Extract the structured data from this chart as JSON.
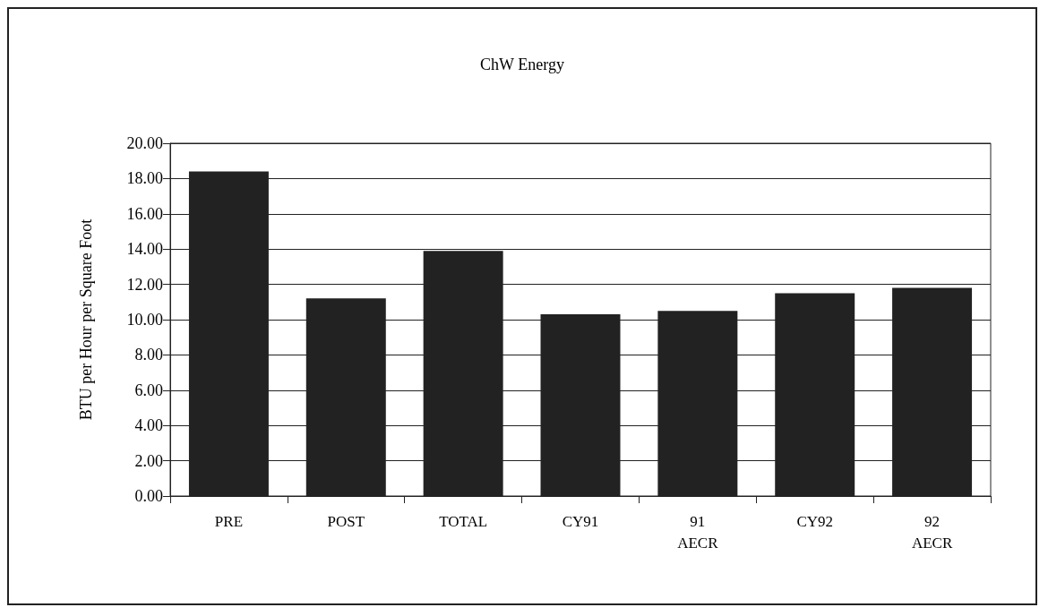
{
  "chart_data": {
    "type": "bar",
    "title": "ChW Energy",
    "ylabel": "BTU per Hour per Square Foot",
    "categories": [
      "PRE",
      "POST",
      "TOTAL",
      "CY91",
      "91\nAECR",
      "CY92",
      "92\nAECR"
    ],
    "values": [
      18.4,
      11.2,
      13.9,
      10.3,
      10.5,
      11.5,
      11.8
    ],
    "color": "#222222",
    "ylim": [
      0,
      20
    ],
    "yticks": [
      {
        "value": 0,
        "label": "0.00"
      },
      {
        "value": 2,
        "label": "2.00"
      },
      {
        "value": 4,
        "label": "4.00"
      },
      {
        "value": 6,
        "label": "6.00"
      },
      {
        "value": 8,
        "label": "8.00"
      },
      {
        "value": 10,
        "label": "10.00"
      },
      {
        "value": 12,
        "label": "12.00"
      },
      {
        "value": 14,
        "label": "14.00"
      },
      {
        "value": 16,
        "label": "16.00"
      },
      {
        "value": 18,
        "label": "18.00"
      },
      {
        "value": 20,
        "label": "20.00"
      }
    ],
    "grid": "y"
  }
}
